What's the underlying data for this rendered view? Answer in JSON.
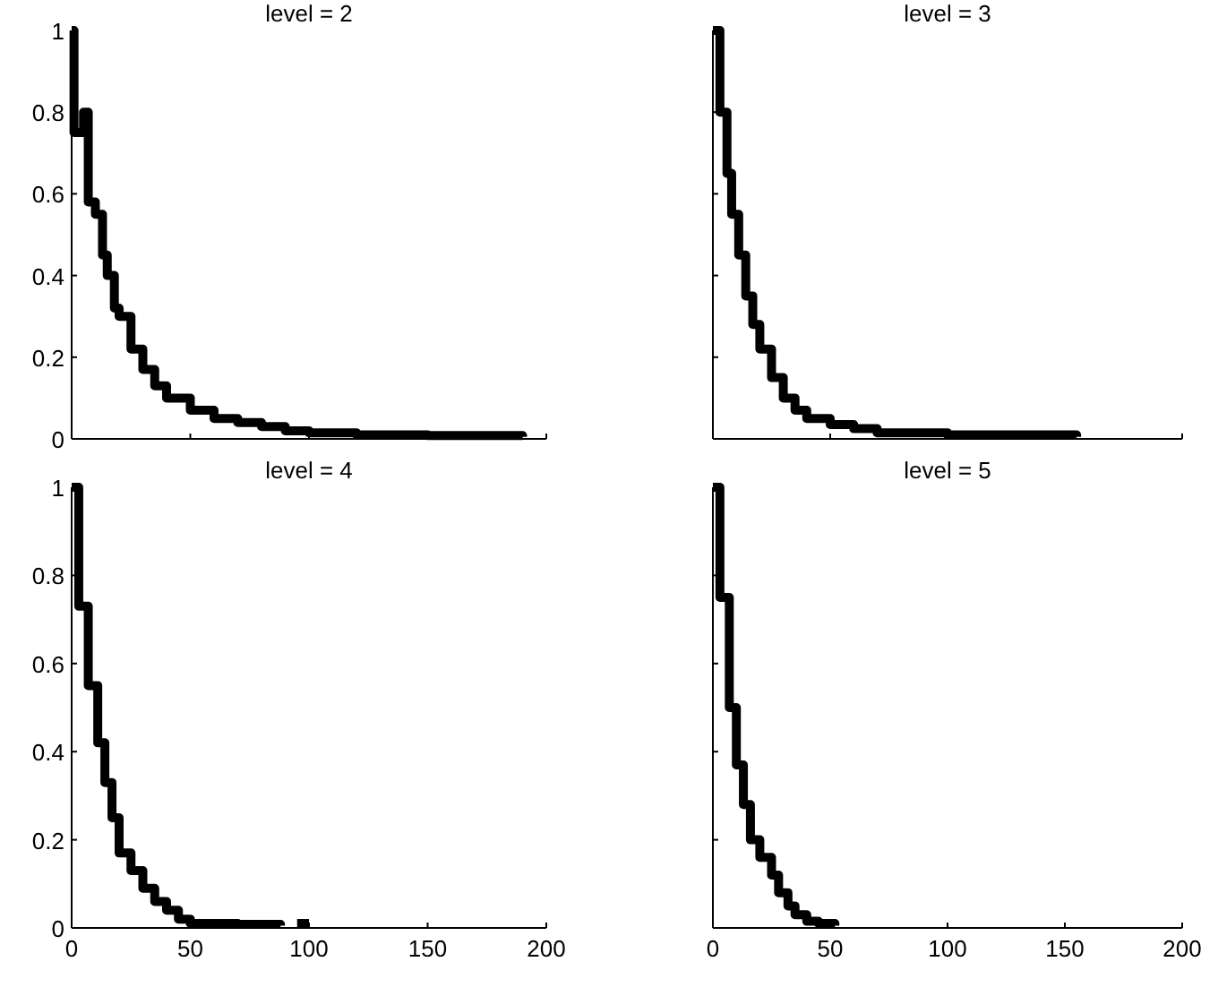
{
  "chart_data": [
    {
      "type": "step",
      "title": "level = 2",
      "xlim": [
        0,
        200
      ],
      "xticks": [
        0,
        50,
        100,
        150,
        200
      ],
      "ylim": [
        0,
        1
      ],
      "yticks": [
        0,
        0.2,
        0.4,
        0.6,
        0.8,
        1
      ],
      "tick_labels": "y",
      "series": [
        {
          "color": "#000000",
          "x": [
            0,
            1,
            5,
            7,
            10,
            13,
            15,
            18,
            20,
            25,
            30,
            35,
            40,
            50,
            60,
            70,
            80,
            90,
            100,
            120,
            150,
            190
          ],
          "values": [
            1,
            0.75,
            0.8,
            0.58,
            0.55,
            0.45,
            0.4,
            0.32,
            0.3,
            0.22,
            0.17,
            0.13,
            0.1,
            0.07,
            0.05,
            0.04,
            0.03,
            0.02,
            0.015,
            0.01,
            0.008,
            0.005
          ]
        }
      ]
    },
    {
      "type": "step",
      "title": "level = 3",
      "xlim": [
        0,
        200
      ],
      "xticks": [
        0,
        50,
        100,
        150,
        200
      ],
      "ylim": [
        0,
        1
      ],
      "yticks": [
        0,
        0.2,
        0.4,
        0.6,
        0.8,
        1
      ],
      "tick_labels": false,
      "series": [
        {
          "color": "#000000",
          "x": [
            0,
            3,
            6,
            8,
            11,
            14,
            17,
            20,
            25,
            30,
            35,
            40,
            50,
            60,
            70,
            100,
            155
          ],
          "values": [
            1,
            0.8,
            0.65,
            0.55,
            0.45,
            0.35,
            0.28,
            0.22,
            0.15,
            0.1,
            0.07,
            0.05,
            0.035,
            0.025,
            0.015,
            0.01,
            0.005
          ]
        }
      ]
    },
    {
      "type": "step",
      "title": "level = 4",
      "xlim": [
        0,
        200
      ],
      "xticks": [
        0,
        50,
        100,
        150,
        200
      ],
      "ylim": [
        0,
        1
      ],
      "yticks": [
        0,
        0.2,
        0.4,
        0.6,
        0.8,
        1
      ],
      "series": [
        {
          "color": "#000000",
          "x": [
            0,
            3,
            7,
            11,
            14,
            17,
            20,
            25,
            30,
            35,
            40,
            45,
            50,
            70,
            88,
            92,
            95,
            100
          ],
          "values": [
            1,
            0.73,
            0.55,
            0.42,
            0.33,
            0.25,
            0.17,
            0.13,
            0.09,
            0.06,
            0.04,
            0.02,
            0.01,
            0.008,
            0.005,
            null,
            0.01,
            0.01
          ]
        }
      ]
    },
    {
      "type": "step",
      "title": "level = 5",
      "xlim": [
        0,
        200
      ],
      "xticks": [
        0,
        50,
        100,
        150,
        200
      ],
      "ylim": [
        0,
        1
      ],
      "yticks": [
        0,
        0.2,
        0.4,
        0.6,
        0.8,
        1
      ],
      "tick_labels": "x",
      "series": [
        {
          "color": "#000000",
          "x": [
            0,
            3,
            7,
            10,
            13,
            16,
            20,
            25,
            28,
            32,
            35,
            40,
            45,
            52
          ],
          "values": [
            1,
            0.75,
            0.5,
            0.37,
            0.28,
            0.2,
            0.16,
            0.12,
            0.08,
            0.05,
            0.03,
            0.015,
            0.01,
            0.005
          ]
        }
      ]
    }
  ]
}
